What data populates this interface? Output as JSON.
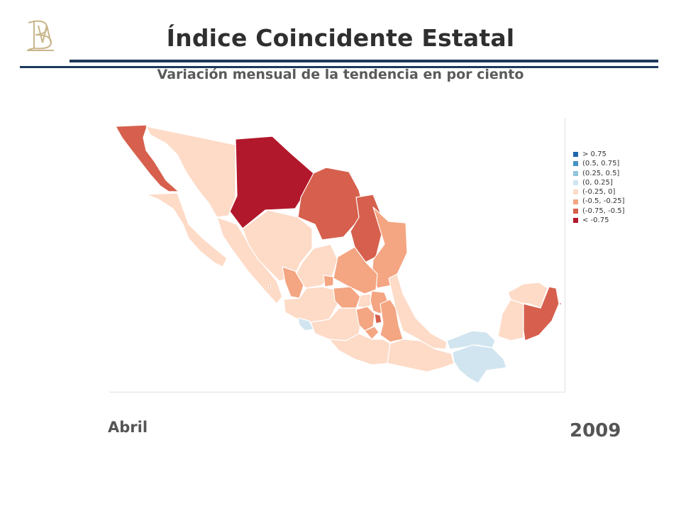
{
  "header": {
    "title": "Índice Coincidente Estatal",
    "subtitle": "Variación mensual de la tendencia en por ciento"
  },
  "period": {
    "month": "Abril",
    "year": "2009"
  },
  "logo": {
    "icon": "bm-monogram-icon",
    "color": "#c8b58a"
  },
  "legend": {
    "items": [
      {
        "label": "> 0.75",
        "color": "#2166ac"
      },
      {
        "label": "(0.5, 0.75]",
        "color": "#4393c3"
      },
      {
        "label": "(0.25, 0.5]",
        "color": "#92c5de"
      },
      {
        "label": "(0, 0.25]",
        "color": "#d1e5f0"
      },
      {
        "label": "(-0.25, 0]",
        "color": "#fddbc7"
      },
      {
        "label": "(-0.5, -0.25]",
        "color": "#f4a582"
      },
      {
        "label": "(-0.75, -0.5]",
        "color": "#d6604d"
      },
      {
        "label": "< -0.75",
        "color": "#b2182b"
      }
    ]
  },
  "colors": {
    "rule": "#1d3a5a",
    "region_border": "#ffffff"
  }
}
